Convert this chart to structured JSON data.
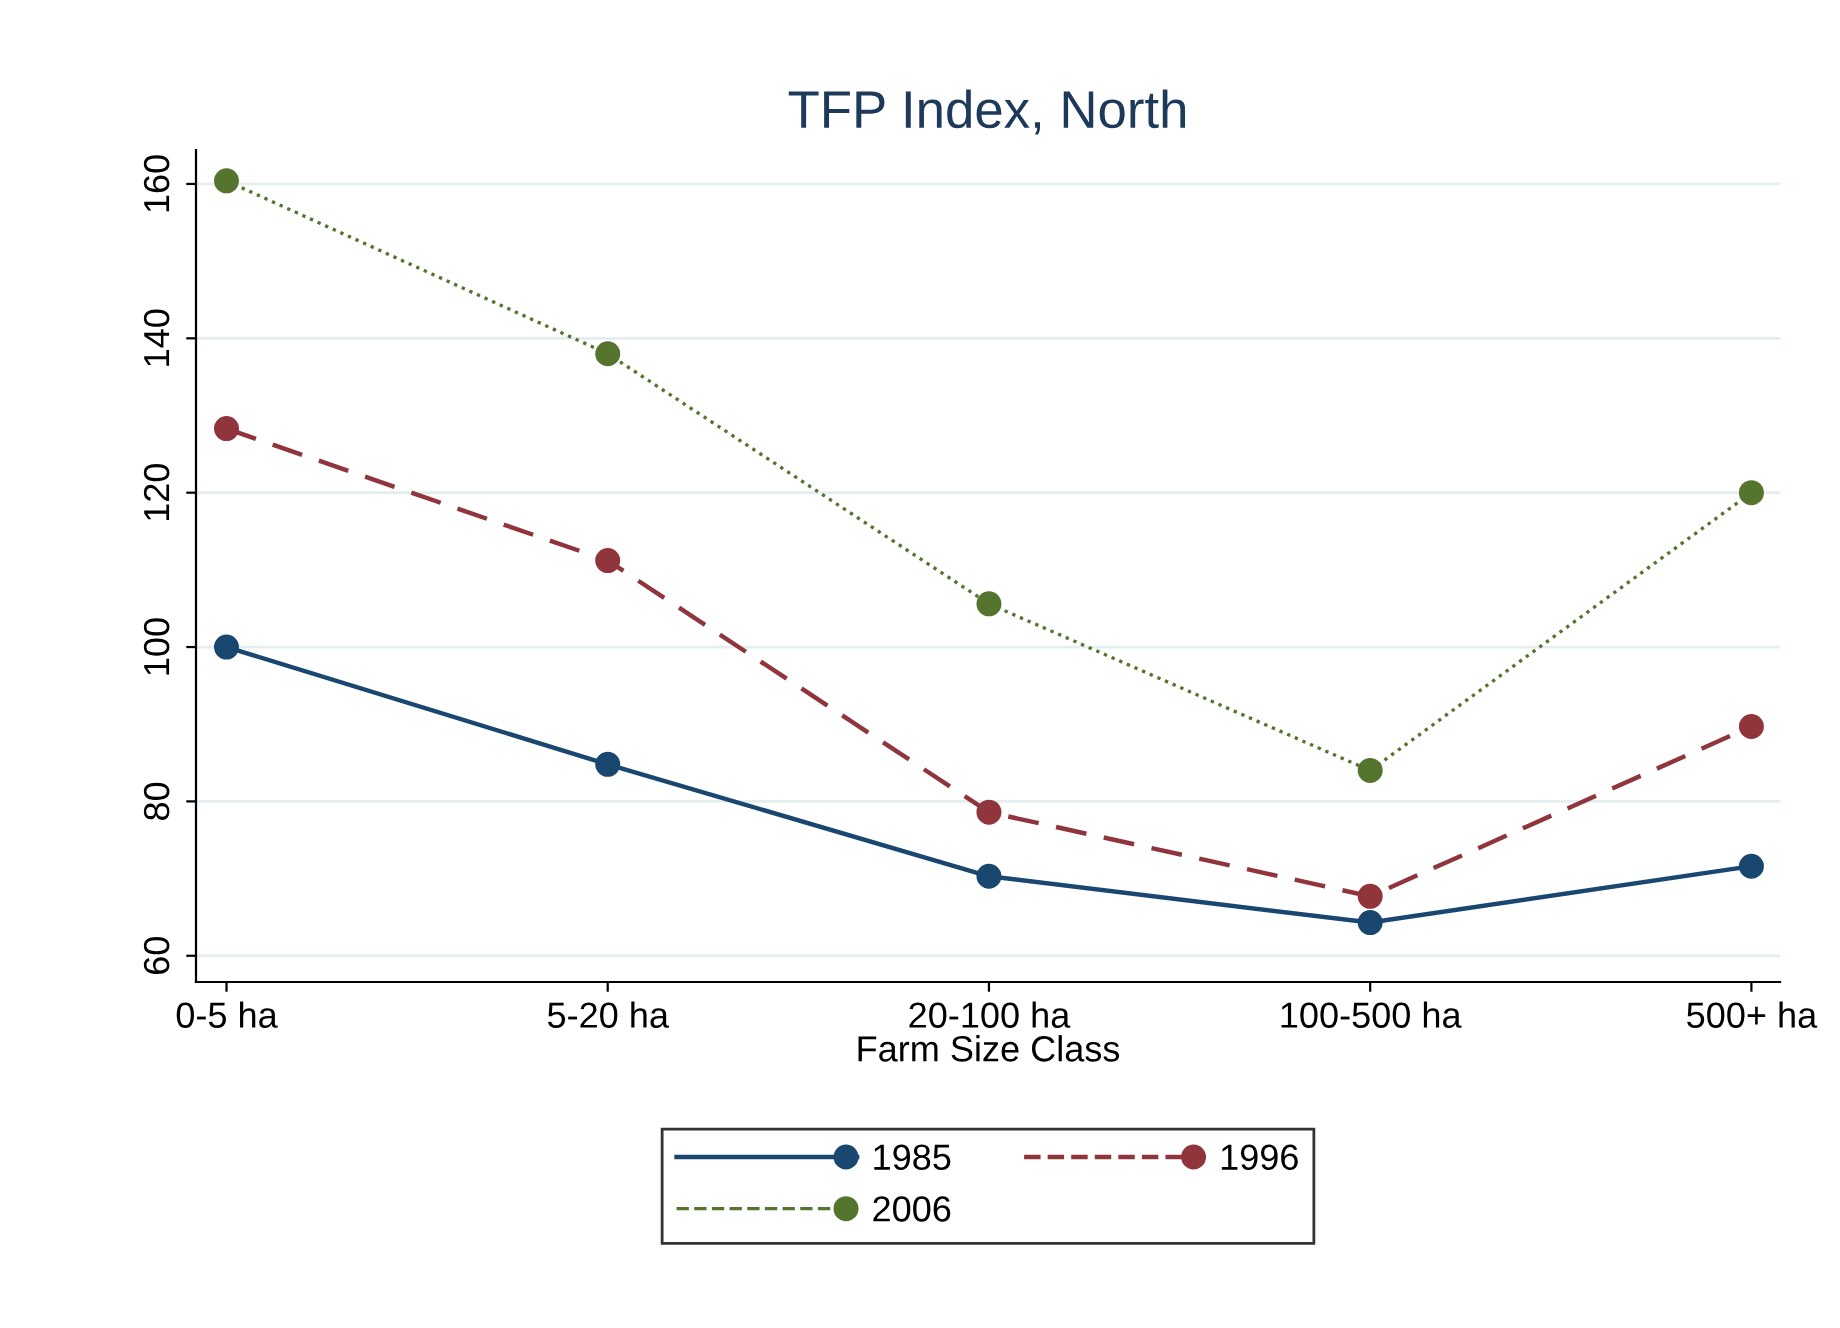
{
  "chart_data": {
    "type": "line",
    "title": "TFP Index, North",
    "xlabel": "Farm Size Class",
    "categories": [
      "0-5 ha",
      "5-20 ha",
      "20-100 ha",
      "100-500 ha",
      "500+ ha"
    ],
    "series": [
      {
        "name": "1985",
        "color": "#1a476f",
        "values": [
          100,
          84.8,
          70.3,
          64.3,
          71.6
        ],
        "line_style": "solid"
      },
      {
        "name": "1996",
        "color": "#90353b",
        "values": [
          128.3,
          111.2,
          78.6,
          67.7,
          89.7
        ],
        "line_style": "dashed"
      },
      {
        "name": "2006",
        "color": "#55752f",
        "values": [
          160.4,
          138,
          105.6,
          84,
          120
        ],
        "line_style": "dotted"
      }
    ],
    "ylim": [
      56.6,
      164.4
    ],
    "yticks": [
      60,
      80,
      100,
      120,
      140,
      160
    ],
    "grid": "y",
    "legend": "bottom",
    "marker": "circle"
  }
}
